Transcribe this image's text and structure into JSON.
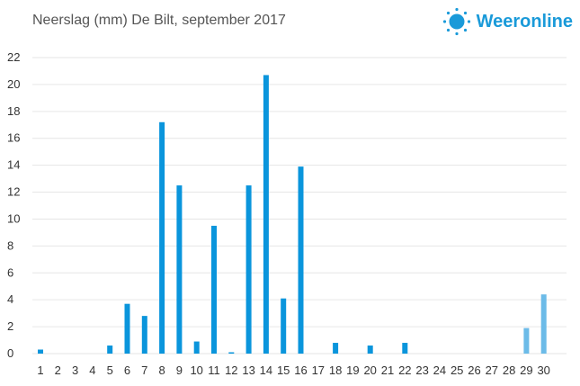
{
  "header": {
    "title": "Neerslag (mm) De Bilt, september 2017",
    "brand": "Weeronline",
    "brand_icon": "sun-icon"
  },
  "colors": {
    "bar": "#0a95dc",
    "bar_forecast": "#6cbbe8",
    "brand": "#1a9ad9",
    "grid": "#e6e6e6",
    "text": "#333333"
  },
  "chart_data": {
    "type": "bar",
    "title": "Neerslag (mm) De Bilt, september 2017",
    "xlabel": "",
    "ylabel": "",
    "ylim": [
      0,
      22
    ],
    "yticks": [
      0,
      2,
      4,
      6,
      8,
      10,
      12,
      14,
      16,
      18,
      20,
      22
    ],
    "grid": true,
    "categories": [
      "1",
      "2",
      "3",
      "4",
      "5",
      "6",
      "7",
      "8",
      "9",
      "10",
      "11",
      "12",
      "13",
      "14",
      "15",
      "16",
      "17",
      "18",
      "19",
      "20",
      "21",
      "22",
      "23",
      "24",
      "25",
      "26",
      "27",
      "28",
      "29",
      "30"
    ],
    "values": [
      0.3,
      0,
      0,
      0,
      0.6,
      3.7,
      2.8,
      17.2,
      12.5,
      0.9,
      9.5,
      0.1,
      12.5,
      20.7,
      4.1,
      13.9,
      0,
      0.8,
      0,
      0.6,
      0,
      0.8,
      0,
      0,
      0,
      0,
      0,
      0,
      1.9,
      4.4
    ],
    "forecast_days": [
      "29",
      "30"
    ]
  }
}
